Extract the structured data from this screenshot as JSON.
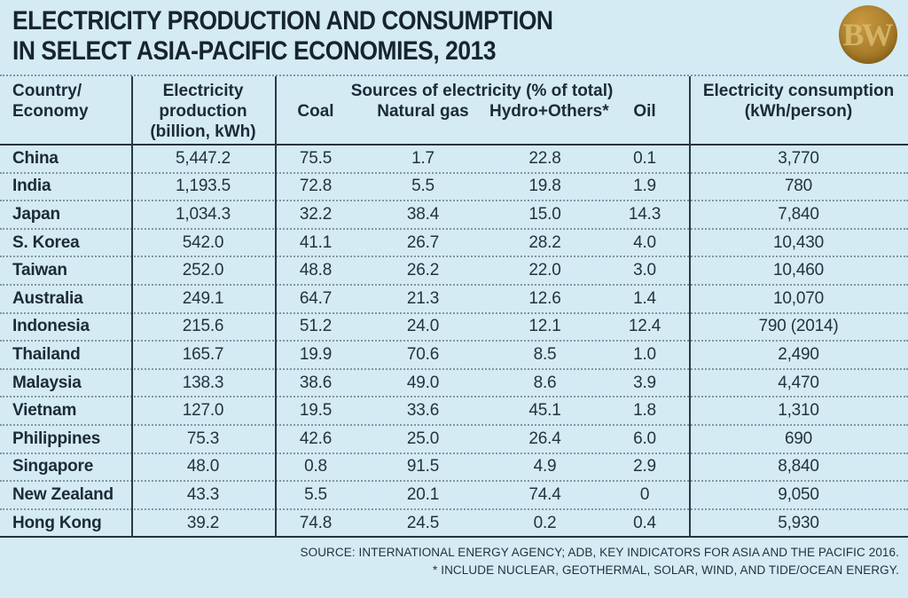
{
  "title": {
    "line1": "ELECTRICITY PRODUCTION AND CONSUMPTION",
    "line2": "IN SELECT ASIA-PACIFIC ECONOMIES, 2013"
  },
  "logo": {
    "text": "BW"
  },
  "header": {
    "country": "Country/\nEconomy",
    "production": "Electricity\nproduction\n(billion, kWh)",
    "sources_group": "Sources of electricity (% of total)",
    "coal": "Coal",
    "natural_gas": "Natural gas",
    "hydro_others": "Hydro+Others*",
    "oil": "Oil",
    "consumption": "Electricity consumption\n(kWh/person)"
  },
  "chart_data": {
    "type": "table",
    "title": "ELECTRICITY PRODUCTION AND CONSUMPTION IN SELECT ASIA-PACIFIC ECONOMIES, 2013",
    "columns": [
      "Country/Economy",
      "Electricity production (billion, kWh)",
      "Coal (% of total)",
      "Natural gas (% of total)",
      "Hydro+Others* (% of total)",
      "Oil (% of total)",
      "Electricity consumption (kWh/person)"
    ],
    "rows": [
      {
        "country": "China",
        "production": "5,447.2",
        "coal": "75.5",
        "natural_gas": "1.7",
        "hydro_others": "22.8",
        "oil": "0.1",
        "consumption": "3,770"
      },
      {
        "country": "India",
        "production": "1,193.5",
        "coal": "72.8",
        "natural_gas": "5.5",
        "hydro_others": "19.8",
        "oil": "1.9",
        "consumption": "780"
      },
      {
        "country": "Japan",
        "production": "1,034.3",
        "coal": "32.2",
        "natural_gas": "38.4",
        "hydro_others": "15.0",
        "oil": "14.3",
        "consumption": "7,840"
      },
      {
        "country": "S. Korea",
        "production": "542.0",
        "coal": "41.1",
        "natural_gas": "26.7",
        "hydro_others": "28.2",
        "oil": "4.0",
        "consumption": "10,430"
      },
      {
        "country": "Taiwan",
        "production": "252.0",
        "coal": "48.8",
        "natural_gas": "26.2",
        "hydro_others": "22.0",
        "oil": "3.0",
        "consumption": "10,460"
      },
      {
        "country": "Australia",
        "production": "249.1",
        "coal": "64.7",
        "natural_gas": "21.3",
        "hydro_others": "12.6",
        "oil": "1.4",
        "consumption": "10,070"
      },
      {
        "country": "Indonesia",
        "production": "215.6",
        "coal": "51.2",
        "natural_gas": "24.0",
        "hydro_others": "12.1",
        "oil": "12.4",
        "consumption": "790 (2014)"
      },
      {
        "country": "Thailand",
        "production": "165.7",
        "coal": "19.9",
        "natural_gas": "70.6",
        "hydro_others": "8.5",
        "oil": "1.0",
        "consumption": "2,490"
      },
      {
        "country": "Malaysia",
        "production": "138.3",
        "coal": "38.6",
        "natural_gas": "49.0",
        "hydro_others": "8.6",
        "oil": "3.9",
        "consumption": "4,470"
      },
      {
        "country": "Vietnam",
        "production": "127.0",
        "coal": "19.5",
        "natural_gas": "33.6",
        "hydro_others": "45.1",
        "oil": "1.8",
        "consumption": "1,310"
      },
      {
        "country": "Philippines",
        "production": "75.3",
        "coal": "42.6",
        "natural_gas": "25.0",
        "hydro_others": "26.4",
        "oil": "6.0",
        "consumption": "690"
      },
      {
        "country": "Singapore",
        "production": "48.0",
        "coal": "0.8",
        "natural_gas": "91.5",
        "hydro_others": "4.9",
        "oil": "2.9",
        "consumption": "8,840"
      },
      {
        "country": "New Zealand",
        "production": "43.3",
        "coal": "5.5",
        "natural_gas": "20.1",
        "hydro_others": "74.4",
        "oil": "0",
        "consumption": "9,050"
      },
      {
        "country": "Hong Kong",
        "production": "39.2",
        "coal": "74.8",
        "natural_gas": "24.5",
        "hydro_others": "0.2",
        "oil": "0.4",
        "consumption": "5,930"
      }
    ]
  },
  "footer": {
    "source": "SOURCE: INTERNATIONAL ENERGY AGENCY; ADB, KEY INDICATORS FOR ASIA AND THE PACIFIC 2016.",
    "note": "* INCLUDE NUCLEAR, GEOTHERMAL, SOLAR, WIND, AND TIDE/OCEAN ENERGY."
  },
  "colors": {
    "background": "#d4ebf4",
    "text_dark": "#1c2b36",
    "rule_solid": "#26333d",
    "rule_dotted": "#8296a2",
    "logo_gold": "#b08330",
    "logo_letters": "#d9bc6d"
  }
}
